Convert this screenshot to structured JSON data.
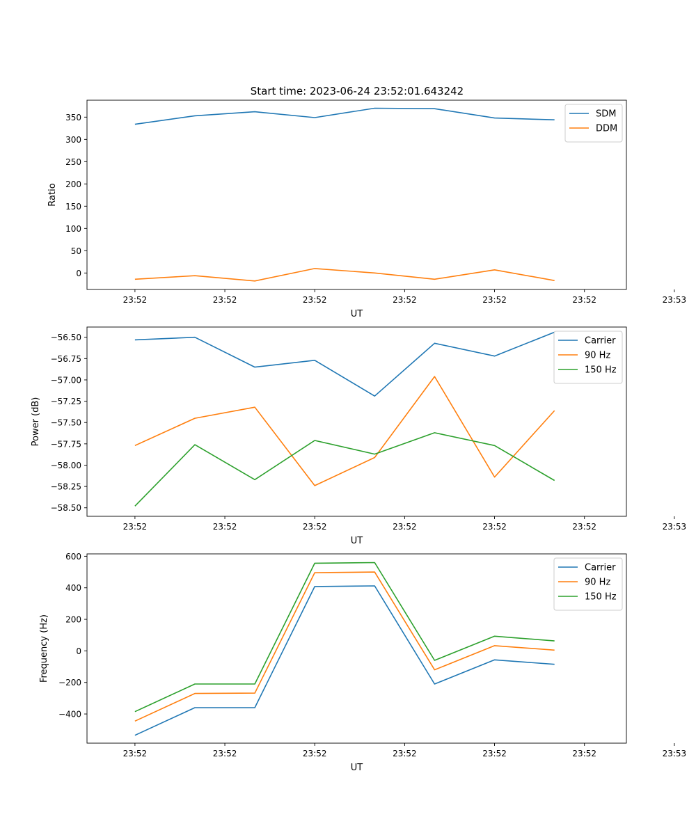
{
  "title": "Start time: 2023-06-24 23:52:01.643242",
  "chart_data": [
    {
      "type": "line",
      "xlabel": "UT",
      "ylabel": "Ratio",
      "xticks": [
        "23:52",
        "23:52",
        "23:52",
        "23:52",
        "23:52",
        "23:52",
        "23:53"
      ],
      "x": [
        1,
        2,
        3,
        4,
        5,
        6,
        7,
        8
      ],
      "xlim": [
        0.2,
        9.2
      ],
      "ylim": [
        -37,
        388
      ],
      "yticks": [
        0,
        50,
        100,
        150,
        200,
        250,
        300,
        350
      ],
      "ytick_labels": [
        "0",
        "50",
        "100",
        "150",
        "200",
        "250",
        "300",
        "350"
      ],
      "legend": "top-right",
      "series": [
        {
          "name": "SDM",
          "color": "#1f77b4",
          "values": [
            334,
            353,
            362,
            349,
            370,
            369,
            348,
            344
          ]
        },
        {
          "name": "DDM",
          "color": "#ff7f0e",
          "values": [
            -14,
            -6,
            -18,
            10,
            0,
            -14,
            7,
            -17
          ]
        }
      ]
    },
    {
      "type": "line",
      "xlabel": "UT",
      "ylabel": "Power (dB)",
      "xticks": [
        "23:52",
        "23:52",
        "23:52",
        "23:52",
        "23:52",
        "23:52",
        "23:53"
      ],
      "x": [
        1,
        2,
        3,
        4,
        5,
        6,
        7,
        8
      ],
      "xlim": [
        0.2,
        9.2
      ],
      "ylim": [
        -58.6,
        -56.38
      ],
      "yticks": [
        -58.5,
        -58.25,
        -58.0,
        -57.75,
        -57.5,
        -57.25,
        -57.0,
        -56.75,
        -56.5
      ],
      "ytick_labels": [
        "−58.50",
        "−58.25",
        "−58.00",
        "−57.75",
        "−57.50",
        "−57.25",
        "−57.00",
        "−56.75",
        "−56.50"
      ],
      "legend": "top-right",
      "series": [
        {
          "name": "Carrier",
          "color": "#1f77b4",
          "values": [
            -56.53,
            -56.5,
            -56.85,
            -56.77,
            -57.19,
            -56.57,
            -56.72,
            -56.44
          ]
        },
        {
          "name": "90 Hz",
          "color": "#ff7f0e",
          "values": [
            -57.77,
            -57.45,
            -57.32,
            -58.24,
            -57.91,
            -56.96,
            -58.14,
            -57.36
          ]
        },
        {
          "name": "150 Hz",
          "color": "#2ca02c",
          "values": [
            -58.48,
            -57.76,
            -58.17,
            -57.71,
            -57.87,
            -57.62,
            -57.77,
            -58.18
          ]
        }
      ]
    },
    {
      "type": "line",
      "xlabel": "UT",
      "ylabel": "Frequency (Hz)",
      "xticks": [
        "23:52",
        "23:52",
        "23:52",
        "23:52",
        "23:52",
        "23:52",
        "23:53"
      ],
      "x": [
        1,
        2,
        3,
        4,
        5,
        6,
        7,
        8
      ],
      "xlim": [
        0.2,
        9.2
      ],
      "ylim": [
        -585,
        615
      ],
      "yticks": [
        -400,
        -200,
        0,
        200,
        400,
        600
      ],
      "ytick_labels": [
        "−400",
        "−200",
        "0",
        "200",
        "400",
        "600"
      ],
      "legend": "top-right",
      "series": [
        {
          "name": "Carrier",
          "color": "#1f77b4",
          "values": [
            -535,
            -360,
            -360,
            408,
            412,
            -210,
            -57,
            -85
          ]
        },
        {
          "name": "90 Hz",
          "color": "#ff7f0e",
          "values": [
            -445,
            -270,
            -268,
            496,
            500,
            -120,
            33,
            5
          ]
        },
        {
          "name": "150 Hz",
          "color": "#2ca02c",
          "values": [
            -385,
            -210,
            -210,
            556,
            560,
            -60,
            93,
            63
          ]
        }
      ]
    }
  ]
}
